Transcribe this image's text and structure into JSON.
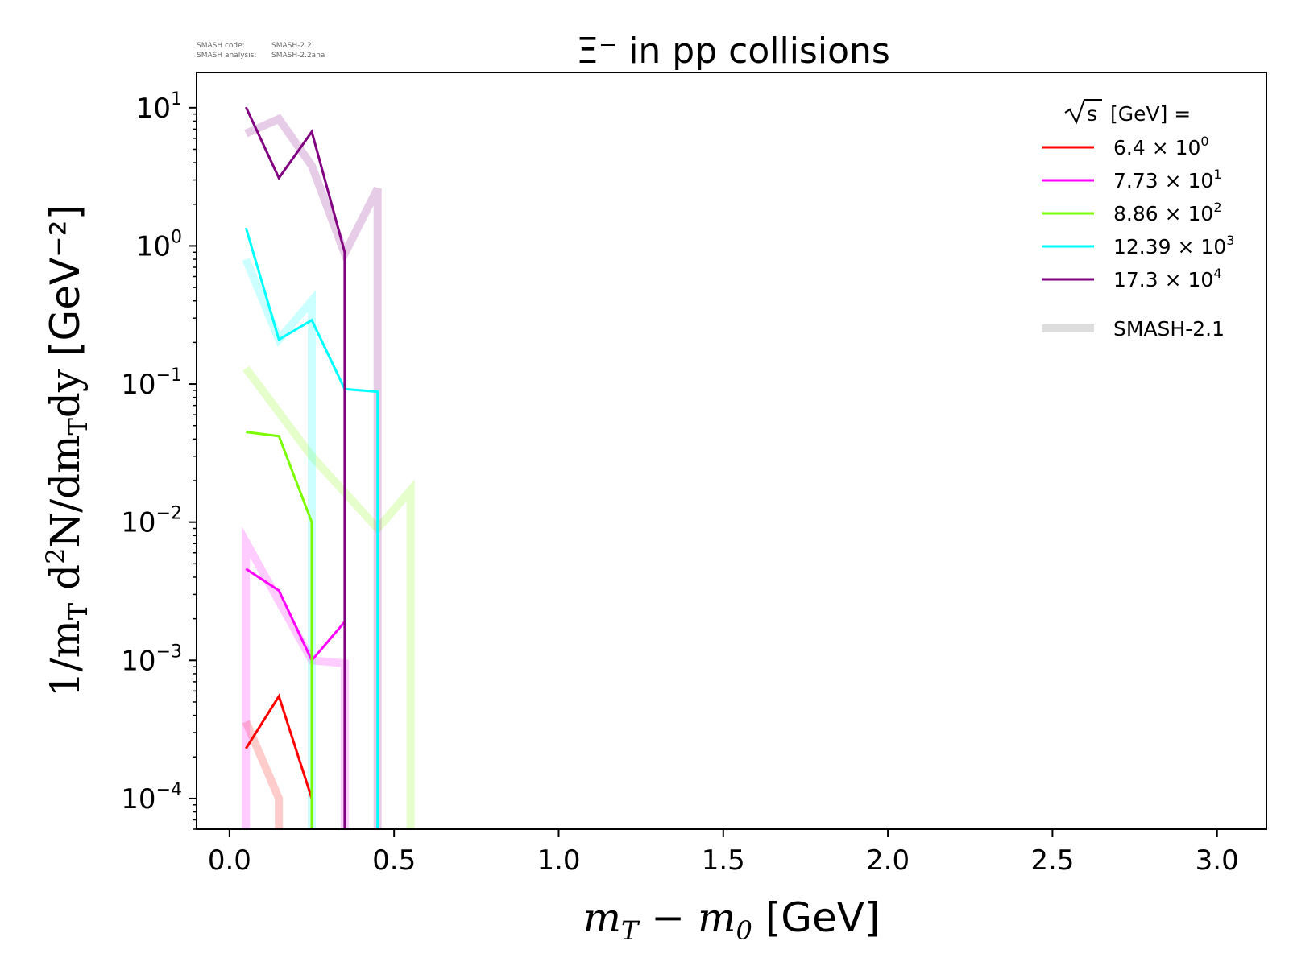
{
  "watermark": {
    "line1_label": "SMASH code:",
    "line1_value": "SMASH-2.2",
    "line2_label": "SMASH analysis:",
    "line2_value": "SMASH-2.2ana"
  },
  "chart_data": {
    "type": "line",
    "title": "Ξ⁻ in pp collisions",
    "xlabel_math": "mT − m0",
    "xlabel_unit": "[GeV]",
    "ylabel_math": "1/mT d²N/dmTdy",
    "ylabel_unit": "[GeV⁻²]",
    "xlim": [
      -0.1,
      3.15
    ],
    "ylim": [
      6e-05,
      18
    ],
    "yscale": "log",
    "x_ticks": [
      "0.0",
      "0.5",
      "1.0",
      "1.5",
      "2.0",
      "2.5",
      "3.0"
    ],
    "x_tick_values": [
      0.0,
      0.5,
      1.0,
      1.5,
      2.0,
      2.5,
      3.0
    ],
    "y_ticks": [
      {
        "value": 10,
        "mantissa": "10",
        "exp": "1"
      },
      {
        "value": 1,
        "mantissa": "10",
        "exp": "0"
      },
      {
        "value": 0.1,
        "mantissa": "10",
        "exp": "−1"
      },
      {
        "value": 0.01,
        "mantissa": "10",
        "exp": "−2"
      },
      {
        "value": 0.001,
        "mantissa": "10",
        "exp": "−3"
      },
      {
        "value": 0.0001,
        "mantissa": "10",
        "exp": "−4"
      }
    ],
    "legend": {
      "title_unit": "[GeV] =",
      "placement": "top-right",
      "entries": [
        {
          "mantissa": "6.4 × 10",
          "exp": "0",
          "color": "#ff0000"
        },
        {
          "mantissa": "7.73 × 10",
          "exp": "1",
          "color": "#ff00ff"
        },
        {
          "mantissa": "8.86 × 10",
          "exp": "2",
          "color": "#7cfc00"
        },
        {
          "mantissa": "12.39 × 10",
          "exp": "3",
          "color": "#00ffff"
        },
        {
          "mantissa": "17.3 × 10",
          "exp": "4",
          "color": "#800080"
        },
        {
          "label": "SMASH-2.1",
          "color": "#dddddd",
          "reference": true
        }
      ]
    },
    "series": [
      {
        "color": "#ff0000",
        "x": [
          0.05,
          0.15,
          0.25,
          0.25
        ],
        "y": [
          0.00023,
          0.00055,
          0.0001,
          1e-05
        ],
        "ref_x": [
          0.05,
          0.15,
          0.15
        ],
        "ref_y": [
          0.00036,
          0.0001,
          1e-05
        ]
      },
      {
        "color": "#ff00ff",
        "x": [
          0.05,
          0.15,
          0.25,
          0.35
        ],
        "y": [
          0.0046,
          0.0032,
          0.001,
          0.0019
        ],
        "ref_x": [
          0.05,
          0.05,
          0.05,
          0.25,
          0.35,
          0.35
        ],
        "ref_y": [
          1e-05,
          0.0072,
          0.0072,
          0.001,
          0.00095,
          1e-05
        ]
      },
      {
        "color": "#7cfc00",
        "x": [
          0.05,
          0.15,
          0.25,
          0.25
        ],
        "y": [
          0.045,
          0.042,
          0.01,
          1e-05
        ],
        "ref_x": [
          0.05,
          0.25,
          0.45,
          0.55,
          0.55
        ],
        "ref_y": [
          0.13,
          0.03,
          0.009,
          0.017,
          1e-05
        ]
      },
      {
        "color": "#00ffff",
        "x": [
          0.05,
          0.15,
          0.25,
          0.35,
          0.45,
          0.45
        ],
        "y": [
          1.35,
          0.21,
          0.29,
          0.092,
          0.088,
          1e-05
        ],
        "ref_x": [
          0.05,
          0.15,
          0.25,
          0.25
        ],
        "ref_y": [
          0.8,
          0.21,
          0.4,
          1e-05
        ]
      },
      {
        "color": "#800080",
        "x": [
          0.05,
          0.15,
          0.25,
          0.35,
          0.35
        ],
        "y": [
          10.1,
          3.1,
          6.7,
          0.9,
          1e-05
        ],
        "ref_x": [
          0.05,
          0.15,
          0.25,
          0.35,
          0.45,
          0.45
        ],
        "ref_y": [
          6.5,
          8.3,
          3.8,
          0.88,
          2.6,
          1e-05
        ]
      }
    ]
  }
}
